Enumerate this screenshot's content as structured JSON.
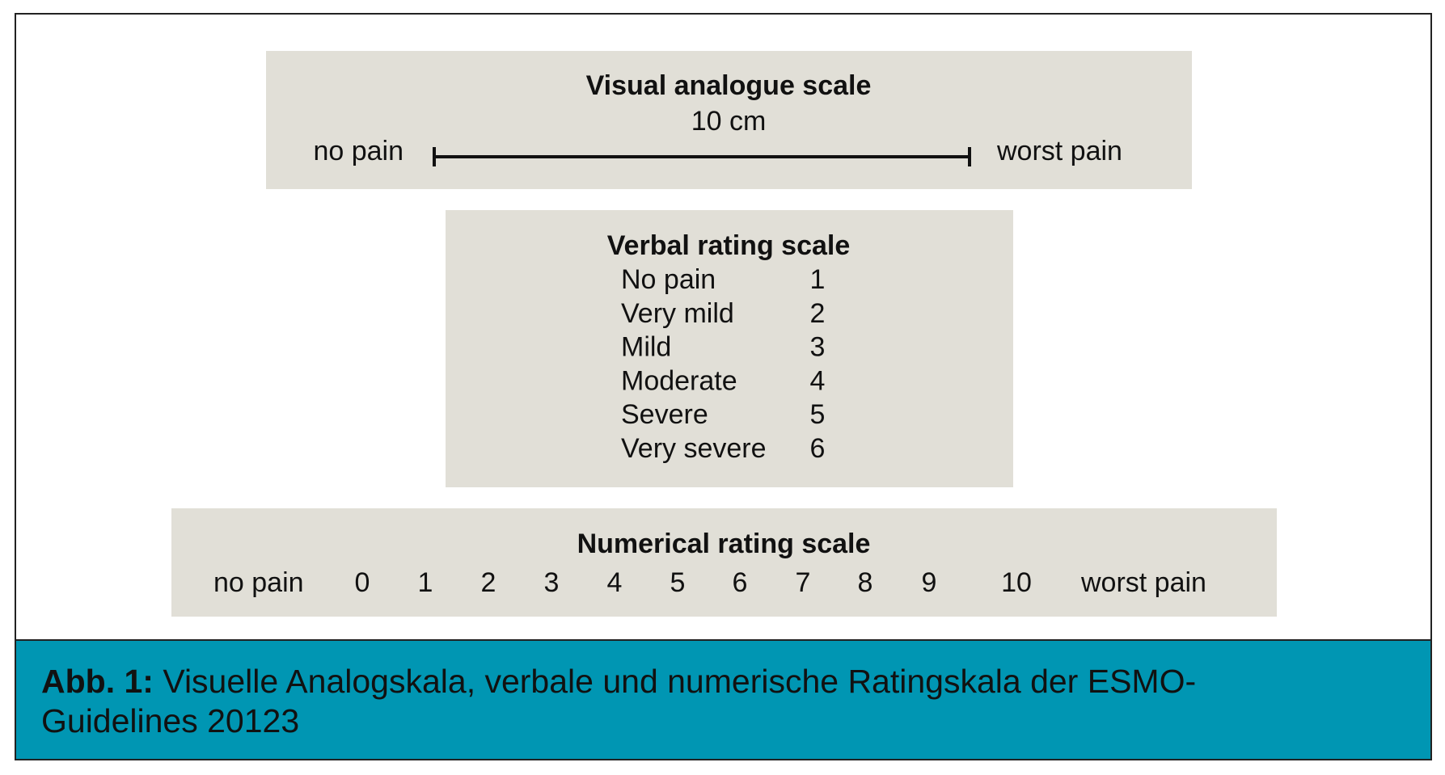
{
  "visual_analogue_scale": {
    "title": "Visual analogue scale",
    "length": "10 cm",
    "left_label": "no pain",
    "right_label": "worst pain"
  },
  "verbal_rating_scale": {
    "title": "Verbal rating scale",
    "rows": [
      {
        "label": "No pain",
        "value": 1
      },
      {
        "label": "Very mild",
        "value": 2
      },
      {
        "label": "Mild",
        "value": 3
      },
      {
        "label": "Moderate",
        "value": 4
      },
      {
        "label": "Severe",
        "value": 5
      },
      {
        "label": "Very severe",
        "value": 6
      }
    ]
  },
  "numerical_rating_scale": {
    "title": "Numerical rating scale",
    "left_label": "no pain",
    "values": [
      0,
      1,
      2,
      3,
      4,
      5,
      6,
      7,
      8,
      9,
      10
    ],
    "right_label": "worst pain"
  },
  "caption": {
    "label": "Abb. 1:",
    "text": "Visuelle Analogskala, verbale und numerische Ratingskala der ESMO-Guidelines 20123"
  }
}
